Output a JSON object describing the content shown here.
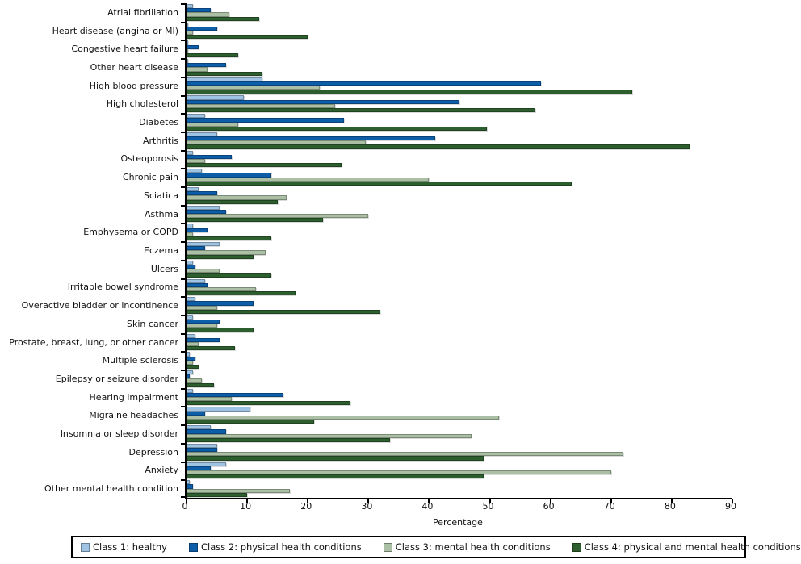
{
  "chart_data": {
    "type": "bar",
    "orientation": "horizontal",
    "title": "",
    "xlabel": "Percentage",
    "ylabel": "",
    "xlim": [
      0,
      90
    ],
    "x_ticks": [
      0,
      10,
      20,
      30,
      40,
      50,
      60,
      70,
      80,
      90
    ],
    "grid": false,
    "legend_position": "bottom",
    "axis_color": "#000000",
    "categories": [
      "Atrial fibrillation",
      "Heart disease (angina or MI)",
      "Congestive heart failure",
      "Other heart disease",
      "High blood pressure",
      "High cholesterol",
      "Diabetes",
      "Arthritis",
      "Osteoporosis",
      "Chronic pain",
      "Sciatica",
      "Asthma",
      "Emphysema or COPD",
      "Eczema",
      "Ulcers",
      "Irritable bowel syndrome",
      "Overactive bladder or incontinence",
      "Skin cancer",
      "Prostate, breast, lung, or other cancer",
      "Multiple sclerosis",
      "Epilepsy or seizure disorder",
      "Hearing impairment",
      "Migraine headaches",
      "Insomnia or sleep disorder",
      "Depression",
      "Anxiety",
      "Other mental health condition"
    ],
    "series": [
      {
        "name": "Class 1: healthy",
        "color": "#9FC3E2",
        "values": [
          1,
          0.2,
          0.2,
          0.3,
          12.5,
          9.5,
          3,
          5,
          1,
          2.5,
          2,
          5.5,
          1,
          5.5,
          1,
          3,
          1.5,
          1,
          1.5,
          0.5,
          1,
          1,
          10.5,
          4,
          5,
          6.5,
          0.5
        ]
      },
      {
        "name": "Class 2: physical health conditions",
        "color": "#0D5EA8",
        "values": [
          4,
          5,
          2,
          6.5,
          58.5,
          45,
          26,
          41,
          7.5,
          14,
          5,
          6.5,
          3.5,
          3,
          1.5,
          3.5,
          11,
          5.5,
          5.5,
          1.5,
          0.5,
          16,
          3,
          6.5,
          5,
          4,
          1
        ]
      },
      {
        "name": "Class 3: mental health conditions",
        "color": "#ABBFA4",
        "values": [
          7,
          1,
          0.2,
          3.5,
          22,
          24.5,
          8.5,
          29.5,
          3,
          40,
          16.5,
          30,
          1,
          13,
          5.5,
          11.5,
          5,
          5,
          2,
          1,
          2.5,
          7.5,
          51.5,
          47,
          72,
          70,
          17
        ]
      },
      {
        "name": "Class 4: physical and mental health conditions",
        "color": "#2D5E2E",
        "values": [
          12,
          20,
          8.5,
          12.5,
          73.5,
          57.5,
          49.5,
          83,
          25.5,
          63.5,
          15,
          22.5,
          14,
          11,
          14,
          18,
          32,
          11,
          8,
          2,
          4.5,
          27,
          21,
          33.5,
          49,
          49,
          10
        ]
      }
    ]
  }
}
